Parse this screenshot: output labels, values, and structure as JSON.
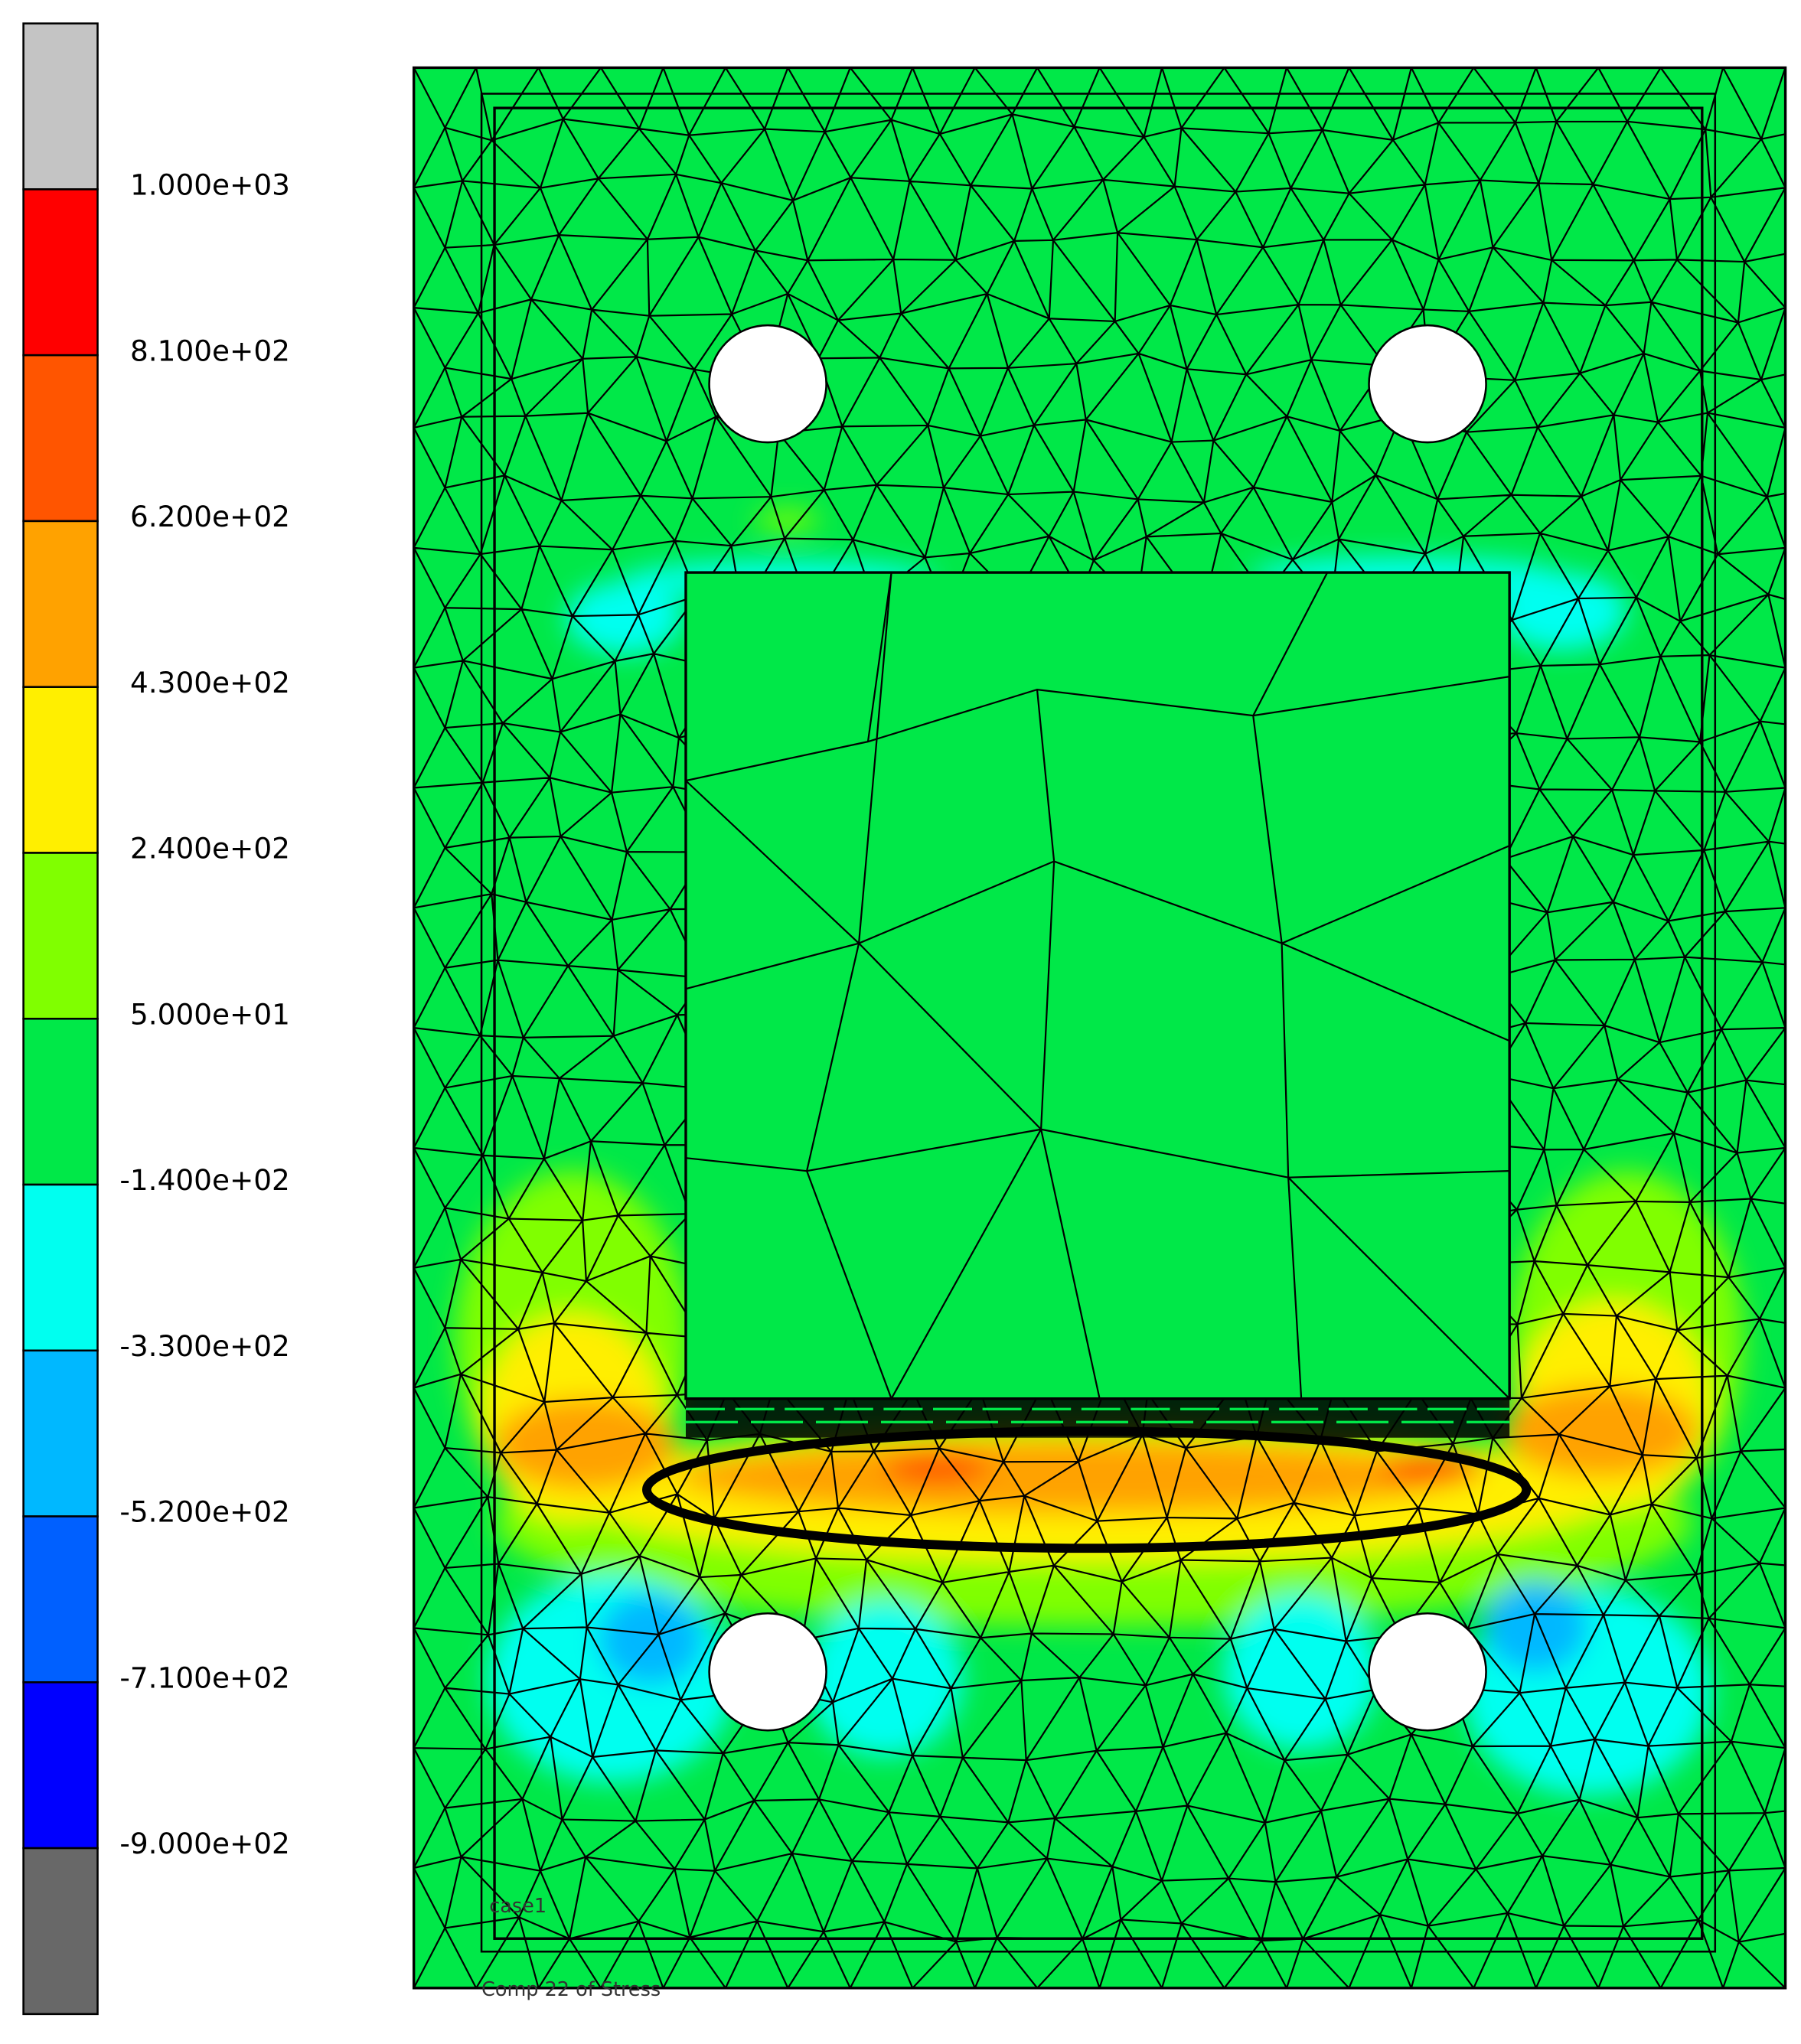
{
  "legend": {
    "colors": [
      "#c4c4c4",
      "#ff0000",
      "#ff5500",
      "#ffa200",
      "#ffef00",
      "#80ff00",
      "#00e848",
      "#00fff0",
      "#00b8ff",
      "#0060ff",
      "#0000ff",
      "#686868"
    ],
    "labels": [
      "1.000e+03",
      "8.100e+02",
      "6.200e+02",
      "4.300e+02",
      "2.400e+02",
      "5.000e+01",
      "-1.400e+02",
      "-3.300e+02",
      "-5.200e+02",
      "-7.100e+02",
      "-9.000e+02"
    ]
  },
  "plot": {
    "case_label": "case1",
    "caption": "Comp 22 of Stress"
  }
}
